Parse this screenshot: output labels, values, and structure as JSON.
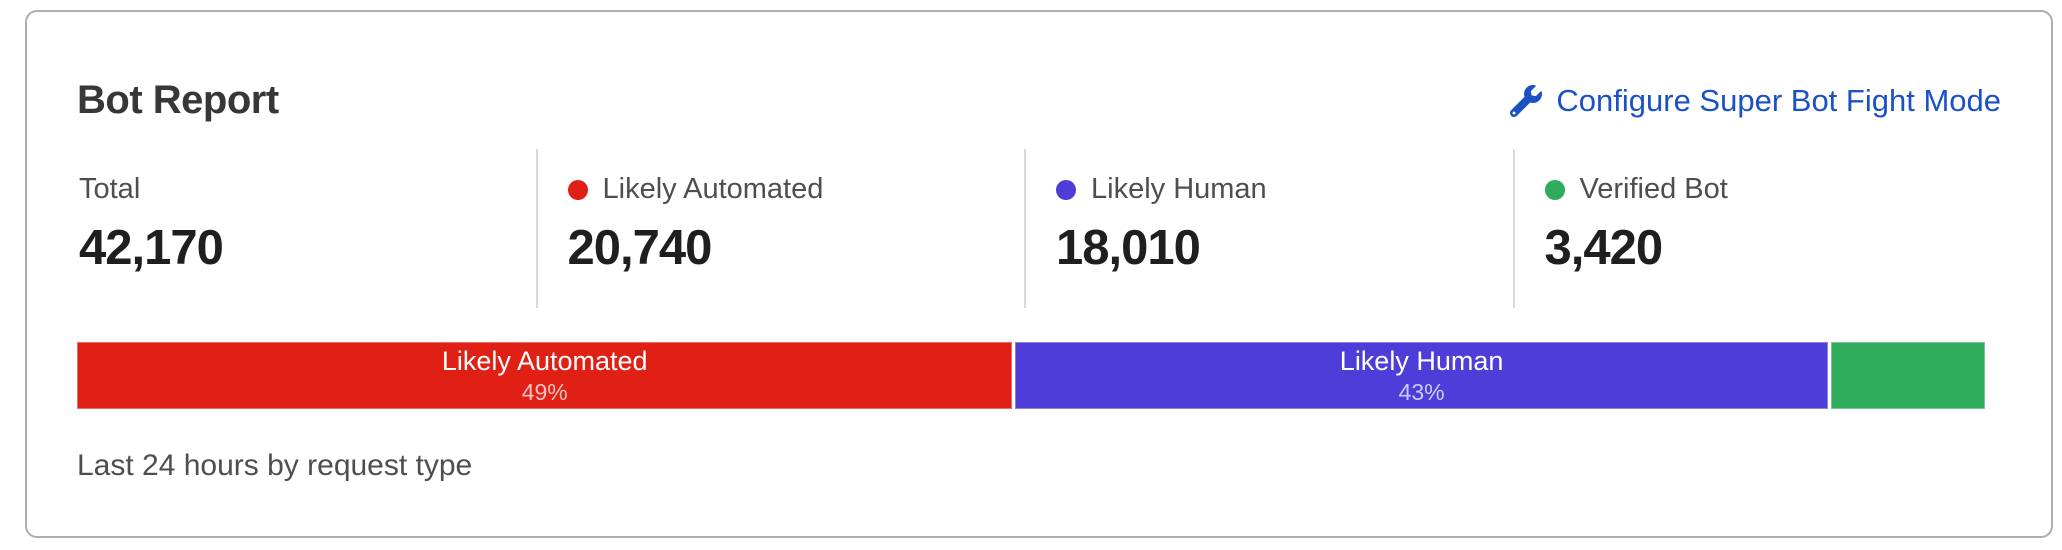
{
  "card": {
    "title": "Bot Report",
    "configure_link": {
      "label": "Configure Super Bot Fight Mode"
    },
    "stats": [
      {
        "label": "Total",
        "value": "42,170",
        "dot_color": null
      },
      {
        "label": "Likely Automated",
        "value": "20,740",
        "dot_color": "#e02015"
      },
      {
        "label": "Likely Human",
        "value": "18,010",
        "dot_color": "#4e3dd8"
      },
      {
        "label": "Verified Bot",
        "value": "3,420",
        "dot_color": "#2fab5c"
      }
    ],
    "caption": "Last 24 hours by request type"
  },
  "colors": {
    "link_blue": "#1b51c5",
    "automated_red": "#e02015",
    "human_blue": "#4e3dd8",
    "verified_green": "#2fab5c",
    "card_border": "#aeaeae",
    "divider": "#d8d8d8"
  },
  "chart_data": {
    "type": "bar",
    "stacked": true,
    "orientation": "horizontal",
    "title": "Bot Report",
    "subtitle": "Last 24 hours by request type",
    "total": 42170,
    "categories": [
      "Likely Automated",
      "Likely Human",
      "Verified Bot"
    ],
    "values": [
      20740,
      18010,
      3420
    ],
    "segments": [
      {
        "label": "Likely Automated",
        "value": 20740,
        "percent": 49.2,
        "percent_label": "49%",
        "color": "#e02015",
        "show_label": true
      },
      {
        "label": "Likely Human",
        "value": 18010,
        "percent": 42.7,
        "percent_label": "43%",
        "color": "#4e3dd8",
        "show_label": true
      },
      {
        "label": "Verified Bot",
        "value": 3420,
        "percent": 8.1,
        "percent_label": "",
        "color": "#2fab5c",
        "show_label": false
      }
    ]
  }
}
